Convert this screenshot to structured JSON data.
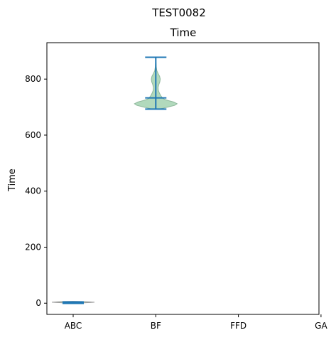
{
  "chart_data": {
    "type": "violin",
    "suptitle": "TEST0082",
    "title": "Time",
    "xlabel": "",
    "ylabel": "Time",
    "categories": [
      "ABC",
      "BF",
      "FFD",
      "GA"
    ],
    "ylim": [
      -40,
      930
    ],
    "yticks": [
      0,
      200,
      400,
      600,
      800
    ],
    "grid": false,
    "colors": {
      "body_fill": "#a8d5b5",
      "body_stroke": "#8fb89c",
      "lines": "#1f77b4",
      "abc_body_stroke": "#999999"
    },
    "series": [
      {
        "category": "ABC",
        "min": 0,
        "max": 7,
        "median": 2,
        "density": [
          [
            0,
            1.0
          ],
          [
            1,
            0.9
          ],
          [
            2,
            0.8
          ],
          [
            4,
            0.55
          ],
          [
            6,
            0.25
          ],
          [
            7,
            0.05
          ]
        ]
      },
      {
        "category": "BF",
        "min": 693,
        "max": 878,
        "median": 733,
        "density": [
          [
            693,
            0.18
          ],
          [
            700,
            0.55
          ],
          [
            706,
            0.88
          ],
          [
            712,
            1.0
          ],
          [
            718,
            0.85
          ],
          [
            724,
            0.55
          ],
          [
            730,
            0.35
          ],
          [
            740,
            0.24
          ],
          [
            750,
            0.17
          ],
          [
            760,
            0.12
          ],
          [
            770,
            0.11
          ],
          [
            780,
            0.14
          ],
          [
            790,
            0.19
          ],
          [
            800,
            0.21
          ],
          [
            810,
            0.18
          ],
          [
            820,
            0.11
          ],
          [
            830,
            0.05
          ],
          [
            845,
            0.02
          ],
          [
            860,
            0.01
          ],
          [
            878,
            0.0
          ]
        ]
      }
    ]
  }
}
